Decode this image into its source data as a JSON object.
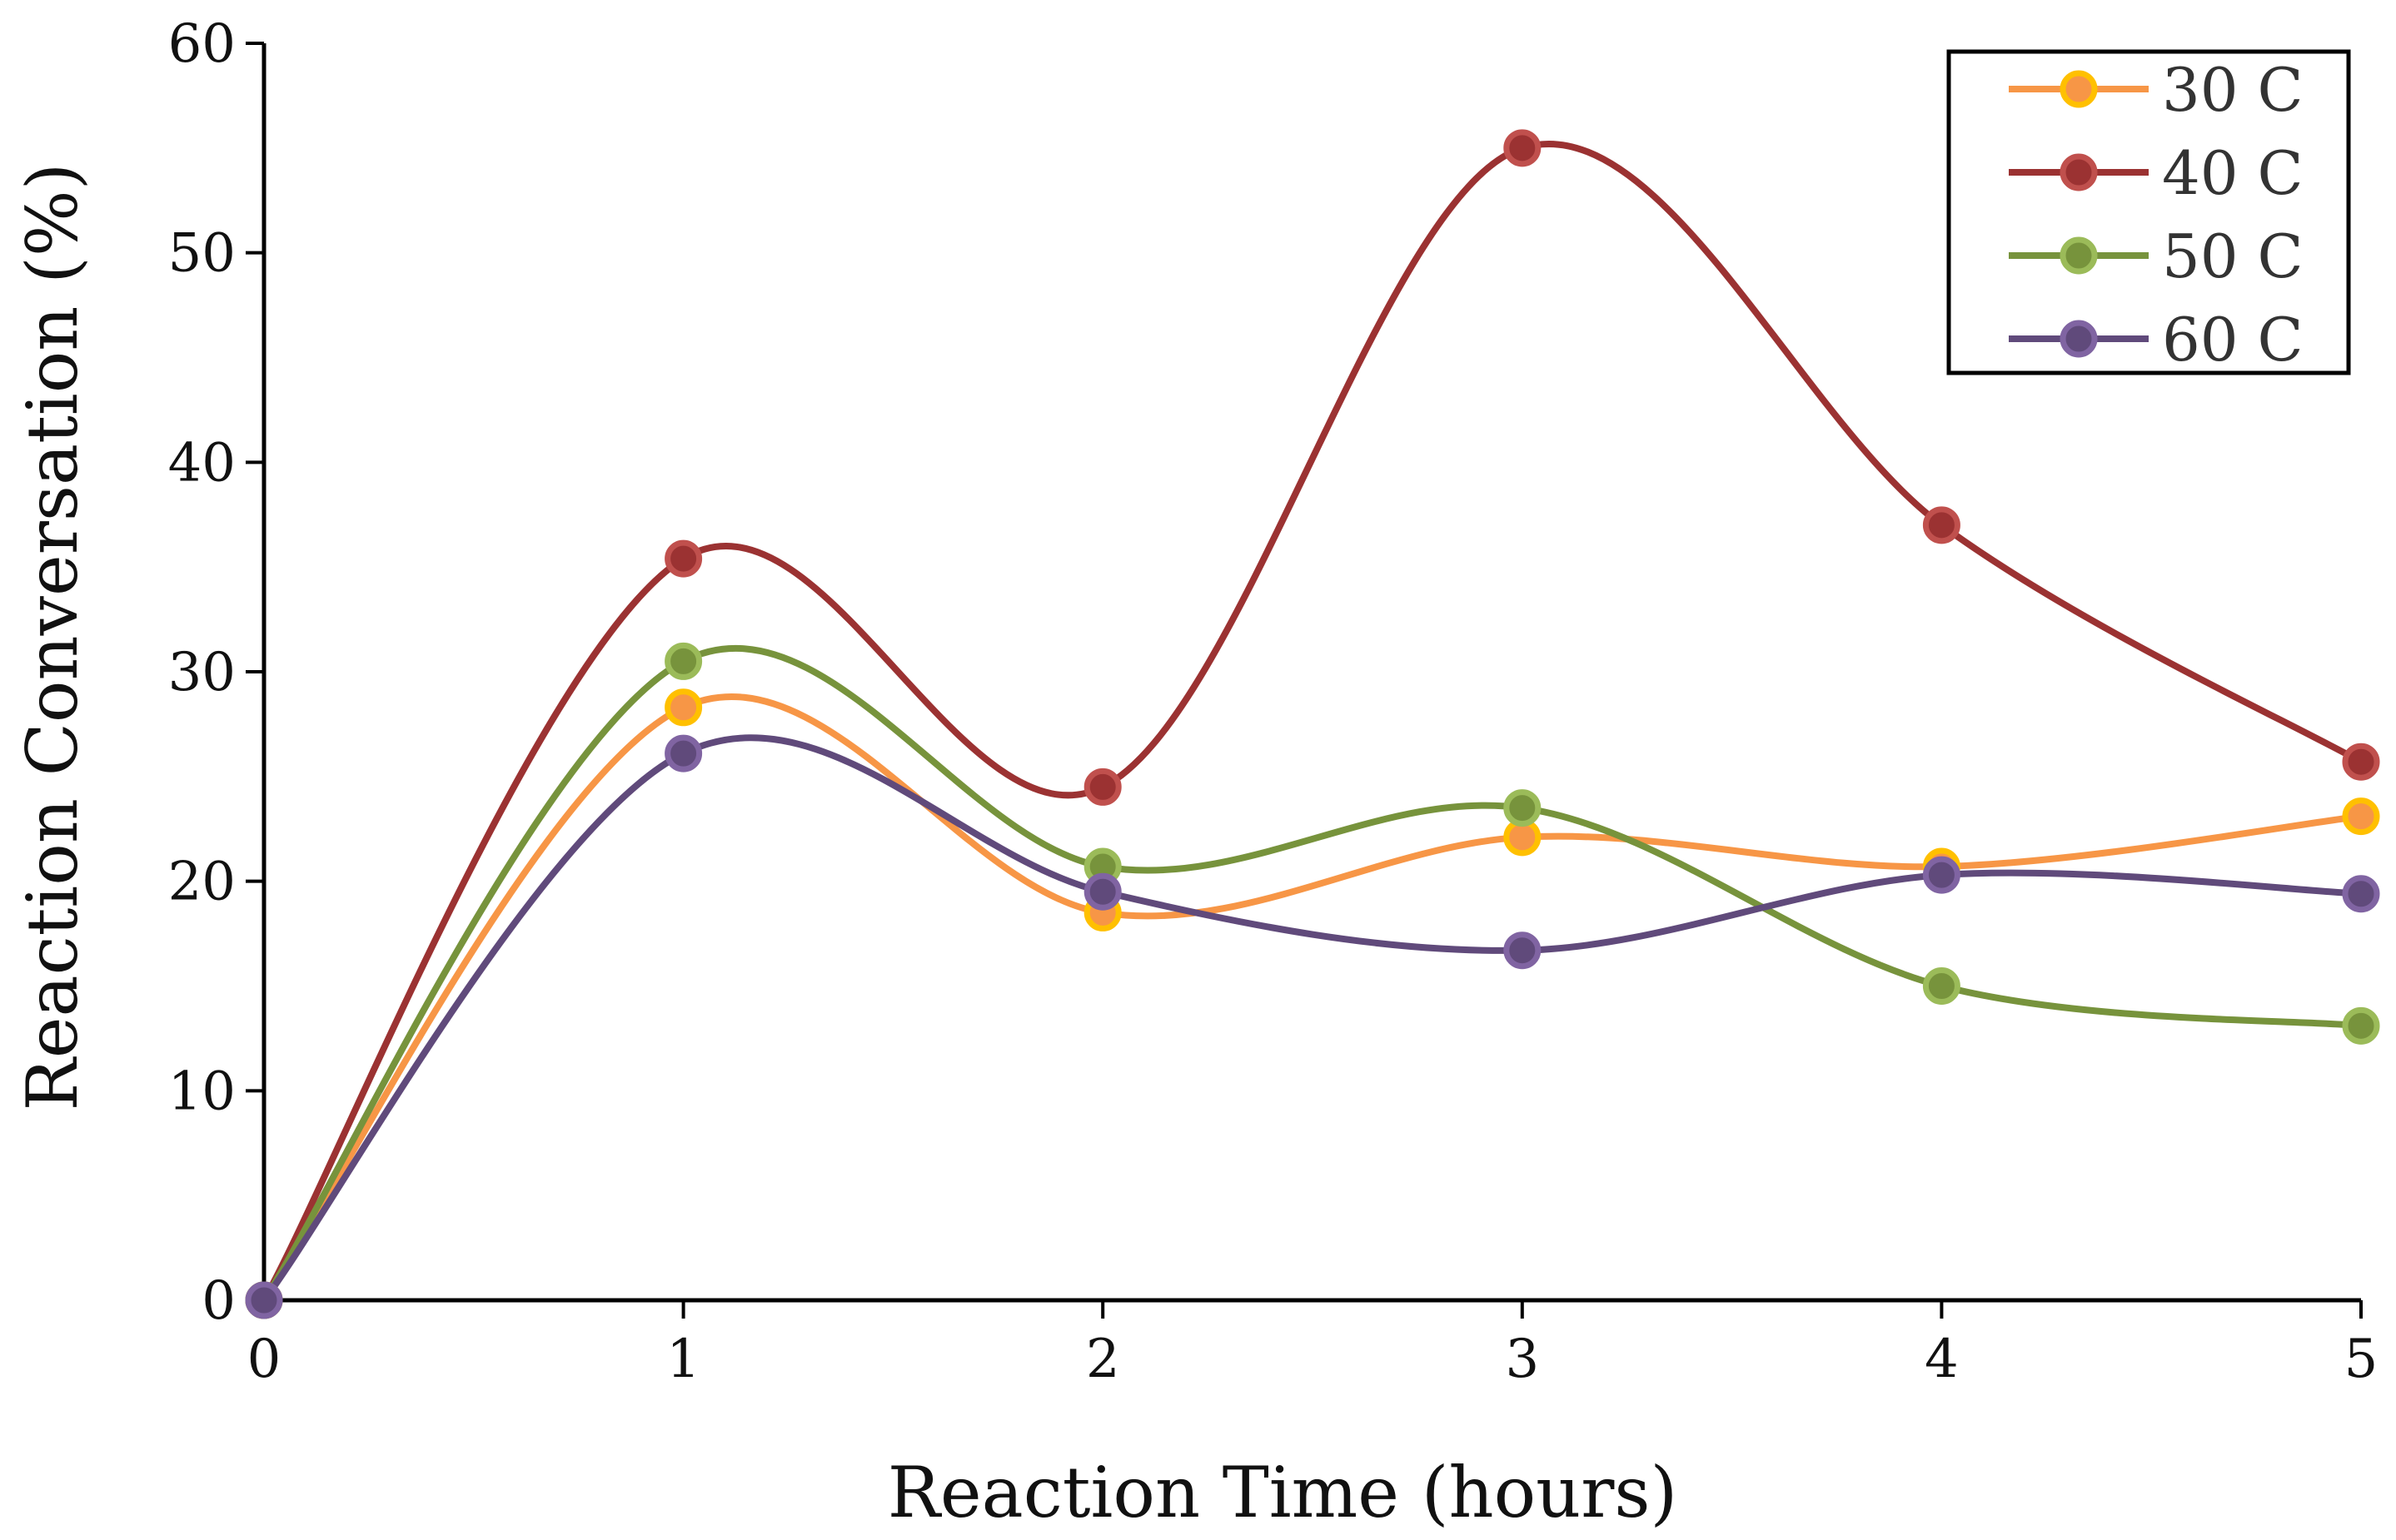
{
  "chart_data": {
    "type": "line",
    "smooth": true,
    "markers": true,
    "title": "",
    "xlabel": "Reaction Time (hours)",
    "ylabel": "Reaction Conversation (%)",
    "xlim": [
      0,
      5
    ],
    "ylim": [
      0,
      60
    ],
    "x": [
      0,
      1,
      2,
      3,
      4,
      5
    ],
    "x_tick_labels": [
      "0",
      "1",
      "2",
      "3",
      "4",
      "5"
    ],
    "y_tick_labels": [
      "0",
      "10",
      "20",
      "30",
      "40",
      "50",
      "60"
    ],
    "y_ticks": [
      0,
      10,
      20,
      30,
      40,
      50,
      60
    ],
    "grid": false,
    "legend_position": "top-right",
    "series": [
      {
        "name": "30 C",
        "color": "#F79646",
        "marker_edge": "#FFC000",
        "values": [
          0,
          28.3,
          18.5,
          22.1,
          20.7,
          23.1
        ]
      },
      {
        "name": "40 C",
        "color": "#9B3232",
        "marker_edge": "#C0504D",
        "values": [
          0,
          35.4,
          24.5,
          55.0,
          37.0,
          25.7
        ]
      },
      {
        "name": "50 C",
        "color": "#77933C",
        "marker_edge": "#9BBB59",
        "values": [
          0,
          30.5,
          20.7,
          23.5,
          15.0,
          13.1
        ]
      },
      {
        "name": "60 C",
        "color": "#604A7B",
        "marker_edge": "#8064A2",
        "values": [
          0,
          26.1,
          19.5,
          16.7,
          20.3,
          19.4
        ]
      }
    ]
  }
}
